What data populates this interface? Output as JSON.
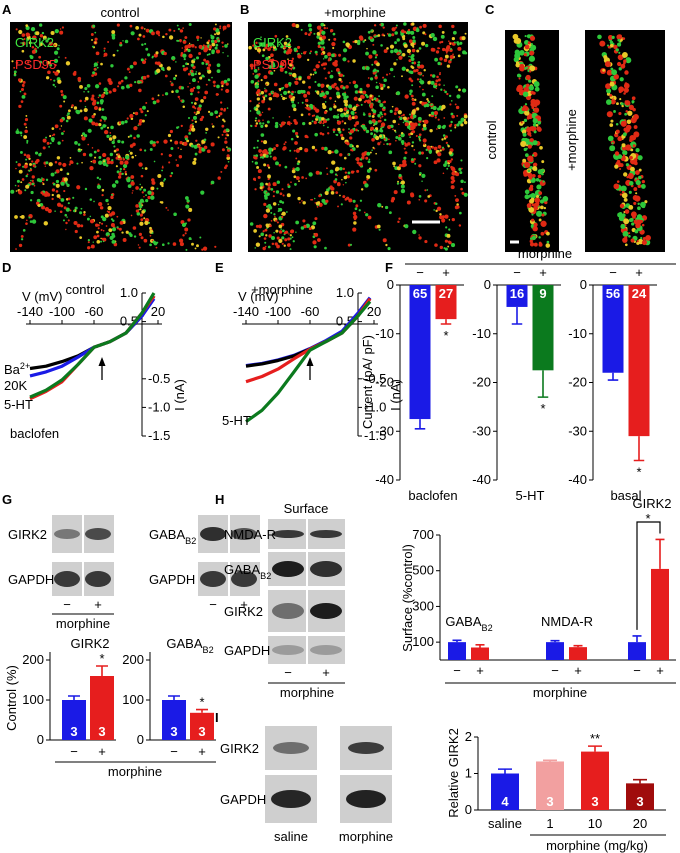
{
  "panels": {
    "A": {
      "label": "A",
      "title": "control",
      "stains": [
        "GIRK2",
        "PSD95"
      ]
    },
    "B": {
      "label": "B",
      "title": "+morphine",
      "stains": [
        "GIRK2",
        "PSD95"
      ]
    },
    "C": {
      "label": "C",
      "conditions": [
        "control",
        "+morphine"
      ]
    },
    "D": {
      "label": "D",
      "title": "control",
      "xlabel": "V (mV)",
      "ylabel": "I (nA)",
      "xlim": [
        -145,
        25
      ],
      "ylim": [
        -1.5,
        1.0
      ],
      "xticks": [
        -140,
        -100,
        -60,
        20
      ],
      "yticks": [
        {
          "value": 1,
          "label": "1.0"
        },
        0.5,
        -0.5,
        {
          "value": -1,
          "label": "-1.0"
        },
        -1.5
      ],
      "x": [
        -140,
        -120,
        -100,
        -80,
        -60,
        -40,
        -20,
        0,
        15
      ],
      "series": [
        {
          "color": "#000000",
          "values": [
            -0.32,
            -0.28,
            -0.2,
            -0.1,
            0.05,
            0.15,
            0.3,
            0.6,
            0.95
          ]
        },
        {
          "color": "#1a1ae6",
          "values": [
            -0.45,
            -0.38,
            -0.28,
            -0.12,
            0.05,
            0.15,
            0.3,
            0.6,
            0.9
          ]
        },
        {
          "color": "#e61e1e",
          "values": [
            -0.85,
            -0.72,
            -0.55,
            -0.25,
            0.05,
            0.15,
            0.3,
            0.65,
            0.95
          ]
        },
        {
          "color": "#0b7a1e",
          "values": [
            -0.82,
            -0.7,
            -0.52,
            -0.25,
            0.05,
            0.15,
            0.3,
            0.65,
            1.0
          ]
        }
      ],
      "annotations": [
        {
          "text": "Ba",
          "sup": "2+"
        },
        "20K",
        "5-HT",
        "baclofen"
      ]
    },
    "E": {
      "label": "E",
      "title": "+morphine",
      "xlabel": "V (mV)",
      "ylabel": "I (nA)",
      "xlim": [
        -145,
        25
      ],
      "ylim": [
        -1.5,
        1.0
      ],
      "xticks": [
        -140,
        -100,
        -60,
        20
      ],
      "yticks": [
        {
          "value": 1,
          "label": "1.0"
        },
        0.5,
        -0.5,
        {
          "value": -1,
          "label": "-1.0"
        },
        -1.5
      ],
      "x": [
        -140,
        -120,
        -100,
        -80,
        -60,
        -40,
        -20,
        0,
        15
      ],
      "series": [
        {
          "color": "#1a1ae6",
          "values": [
            -0.27,
            -0.23,
            -0.17,
            -0.09,
            0.03,
            0.17,
            0.33,
            0.65,
            0.92
          ]
        },
        {
          "color": "#000000",
          "values": [
            -0.28,
            -0.24,
            -0.18,
            -0.1,
            0.02,
            0.15,
            0.3,
            0.6,
            0.9
          ]
        },
        {
          "color": "#e61e1e",
          "values": [
            -0.55,
            -0.46,
            -0.33,
            -0.15,
            0.02,
            0.15,
            0.3,
            0.6,
            0.9
          ]
        },
        {
          "color": "#0b7a1e",
          "values": [
            -1.25,
            -1.05,
            -0.75,
            -0.38,
            0.0,
            0.15,
            0.3,
            0.6,
            0.85
          ]
        }
      ],
      "annotations": [
        "5-HT"
      ]
    },
    "F": {
      "label": "F",
      "header": "morphine",
      "signs": [
        "−",
        "+"
      ],
      "ylabel": "Current  (pA/ pF)",
      "ylim": [
        -40,
        0
      ],
      "yticks": [
        0,
        -10,
        -20,
        -30,
        -40
      ],
      "groups": [
        {
          "name": "baclofen",
          "bars": [
            {
              "value": -27.5,
              "error": 2,
              "n": 65,
              "color": "#1a1ae6"
            },
            {
              "value": -7,
              "error": 1,
              "n": 27,
              "color": "#e61e1e",
              "sig": "*"
            }
          ]
        },
        {
          "name": "5-HT",
          "bars": [
            {
              "value": -4.5,
              "error": 3.5,
              "n": 16,
              "color": "#1a1ae6"
            },
            {
              "value": -17.5,
              "error": 5.5,
              "n": 9,
              "color": "#0b7a1e",
              "sig": "*"
            }
          ]
        },
        {
          "name": "basal",
          "bars": [
            {
              "value": -18,
              "error": 1.5,
              "n": 56,
              "color": "#1a1ae6"
            },
            {
              "value": -31,
              "error": 5,
              "n": 24,
              "color": "#e61e1e",
              "sig": "*"
            }
          ]
        }
      ]
    },
    "G": {
      "label": "G",
      "blot_left": [
        "GIRK2",
        "GAPDH"
      ],
      "blot_right": [
        {
          "text": "GABA",
          "sub": "B2"
        },
        "GAPDH"
      ],
      "signs": [
        "−",
        "+"
      ],
      "condition": "morphine",
      "ylabel": "Control  (%)",
      "ylim": [
        0,
        220
      ],
      "yticks": [
        0,
        100,
        200
      ],
      "groups": [
        {
          "name": "GIRK2",
          "bars": [
            {
              "value": 100,
              "error": 10,
              "n": 3,
              "color": "#1a1ae6"
            },
            {
              "value": 160,
              "error": 25,
              "n": 3,
              "color": "#e61e1e",
              "sig": "*"
            }
          ]
        },
        {
          "name": {
            "text": "GABA",
            "sub": "B2"
          },
          "bars": [
            {
              "value": 100,
              "error": 10,
              "n": 3,
              "color": "#1a1ae6"
            },
            {
              "value": 68,
              "error": 8,
              "n": 3,
              "color": "#e61e1e",
              "sig": "*"
            }
          ]
        }
      ]
    },
    "H": {
      "label": "H",
      "blot_title": "Surface",
      "blot_rows": [
        "NMDA-R",
        {
          "text": "GABA",
          "sub": "B2"
        },
        "GIRK2",
        "GAPDH"
      ],
      "signs": [
        "−",
        "+"
      ],
      "condition": "morphine",
      "ylabel": "Surface  (%control)",
      "ylim": [
        0,
        700
      ],
      "yticks": [
        100,
        300,
        500,
        700
      ],
      "groups": [
        {
          "name": {
            "text": "GABA",
            "sub": "B2"
          },
          "bars": [
            {
              "value": 100,
              "error": 10,
              "color": "#1a1ae6"
            },
            {
              "value": 70,
              "error": 15,
              "color": "#e61e1e"
            }
          ]
        },
        {
          "name": "NMDA-R",
          "bars": [
            {
              "value": 100,
              "error": 8,
              "color": "#1a1ae6"
            },
            {
              "value": 72,
              "error": 8,
              "color": "#e61e1e"
            }
          ]
        },
        {
          "name": "GIRK2",
          "sig": "*",
          "bars": [
            {
              "value": 100,
              "error": 35,
              "color": "#1a1ae6"
            },
            {
              "value": 510,
              "error": 165,
              "color": "#e61e1e"
            }
          ]
        }
      ]
    },
    "I": {
      "label": "I",
      "blot_rows": [
        "GIRK2",
        "GAPDH"
      ],
      "blot_lanes": [
        "saline",
        "morphine"
      ],
      "ylabel": "Relative  GIRK2",
      "ylim": [
        0,
        2
      ],
      "yticks": [
        0,
        1,
        2
      ],
      "categories": [
        "saline",
        "1",
        "10",
        "20"
      ],
      "condition": "morphine (mg/kg)",
      "bars": [
        {
          "value": 1.0,
          "error": 0.12,
          "n": 4,
          "color": "#1a1ae6"
        },
        {
          "value": 1.33,
          "error": 0.03,
          "n": 3,
          "color": "#f2a0a0"
        },
        {
          "value": 1.6,
          "error": 0.15,
          "n": 3,
          "color": "#e61e1e",
          "sig": "**"
        },
        {
          "value": 0.73,
          "error": 0.1,
          "n": 3,
          "color": "#a00c0c"
        }
      ]
    }
  }
}
